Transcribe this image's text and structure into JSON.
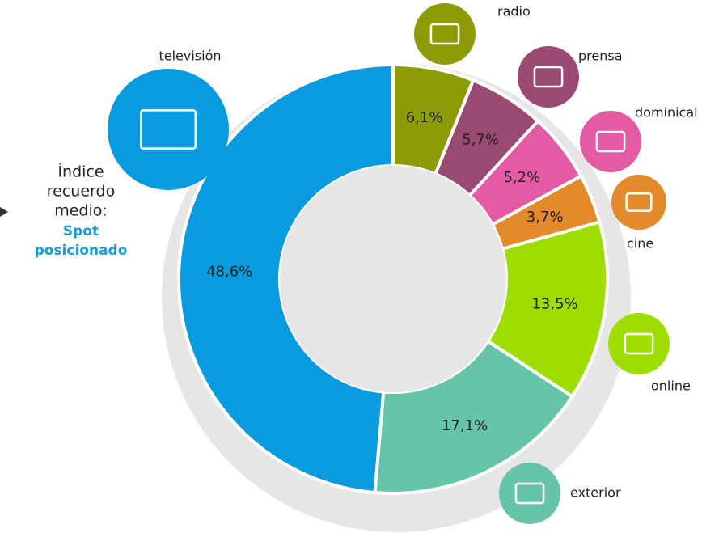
{
  "chart_data": {
    "type": "donut",
    "categories": [
      "radio",
      "prensa",
      "dominical",
      "cine",
      "online",
      "exterior",
      "televisión"
    ],
    "values": [
      6.1,
      5.7,
      5.2,
      3.7,
      13.5,
      17.1,
      48.6
    ],
    "value_labels": [
      "6,1%",
      "5,7%",
      "5,2%",
      "3,7%",
      "13,5%",
      "17,1%",
      "48,6%"
    ],
    "colors": [
      "#8c9c08",
      "#9a4a70",
      "#e35ba3",
      "#e38b2c",
      "#9ddd00",
      "#66c5a9",
      "#0a9ade"
    ],
    "annotation": [
      "Índice",
      "recuerdo",
      "medio:"
    ],
    "annotation_bold": [
      "Spot",
      "posicionado"
    ]
  }
}
